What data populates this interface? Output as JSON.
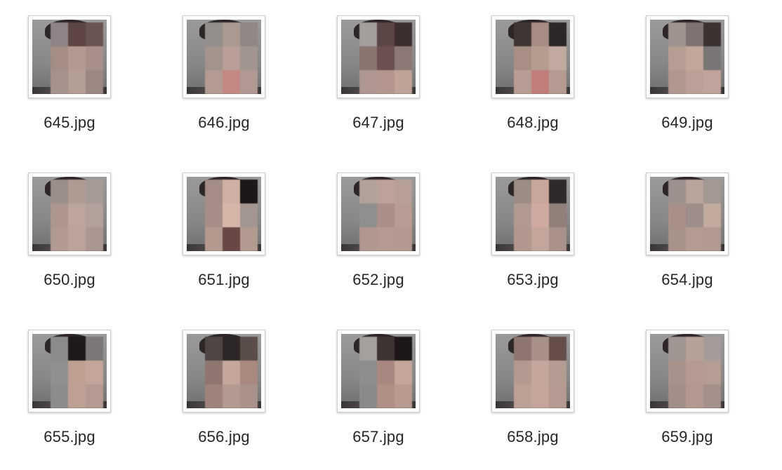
{
  "files": [
    {
      "name": "645.jpg",
      "cells": [
        "#8d8585",
        "#5c4543",
        "#6a5452",
        "#a48d85",
        "#b29a90",
        "#a8908a",
        "#a5928c",
        "#b49f96",
        "#9b8883"
      ]
    },
    {
      "name": "646.jpg",
      "cells": [
        "#938d8b",
        "#a99991",
        "#8f8886",
        "#a2938d",
        "#b89e96",
        "#a2948f",
        "#b39b93",
        "#c48883",
        "#b09993"
      ]
    },
    {
      "name": "647.jpg",
      "cells": [
        "#a39f9c",
        "#5a4644",
        "#3d2f2e",
        "#8a7470",
        "#6a5150",
        "#8c7976",
        "#ad9790",
        "#b4968f",
        "#c0a398"
      ]
    },
    {
      "name": "648.jpg",
      "cells": [
        "#3f3634",
        "#a68c82",
        "#2b2627",
        "#a88e85",
        "#b49c90",
        "#c0aaa0",
        "#b99d94",
        "#c07d7a",
        "#b59a92"
      ]
    },
    {
      "name": "649.jpg",
      "cells": [
        "#a0938f",
        "#7f7472",
        "#3b3232",
        "#b59d93",
        "#c2a79d",
        "#7a7676",
        "#b09891",
        "#bba097",
        "#c0a39a"
      ]
    },
    {
      "name": "650.jpg",
      "cells": [
        "#9c8e8a",
        "#b09b92",
        "#a69a96",
        "#ac968e",
        "#bca59c",
        "#b2a19a",
        "#b09a92",
        "#baa39a",
        "#aa9890"
      ]
    },
    {
      "name": "651.jpg",
      "cells": [
        "#a38d86",
        "#cfb0a4",
        "#1c1718",
        "#a48e87",
        "#d7b6aa",
        "#a39590",
        "#b4998f",
        "#6a4744",
        "#b39a90"
      ]
    },
    {
      "name": "652.jpg",
      "cells": [
        "#b1a19a",
        "#bca29a",
        "#b6a098",
        "#8f8f8f",
        "#a98f87",
        "#b79c93",
        "#b09890",
        "#b49a90",
        "#b39990"
      ]
    },
    {
      "name": "653.jpg",
      "cells": [
        "#9c8c86",
        "#c9a69b",
        "#2f2a2a",
        "#b09a91",
        "#d0aaa0",
        "#917f7a",
        "#b2978f",
        "#c4a59b",
        "#a99289"
      ]
    },
    {
      "name": "654.jpg",
      "cells": [
        "#9c918d",
        "#b8a49a",
        "#a39892",
        "#a89088",
        "#9e8e8a",
        "#c2aa9f",
        "#a8938b",
        "#b49c93",
        "#b09a91"
      ]
    },
    {
      "name": "655.jpg",
      "cells": [
        "#8b8b8b",
        "#1e191b",
        "#7c7878",
        "#909090",
        "#c09f93",
        "#c3a59a",
        "#8c8c8c",
        "#bd9f94",
        "#b49a91"
      ]
    },
    {
      "name": "656.jpg",
      "cells": [
        "#4e4644",
        "#2d2728",
        "#5a4d4a",
        "#8f7670",
        "#c4a69c",
        "#a8887f",
        "#9e837c",
        "#b39a90",
        "#a8928a"
      ]
    },
    {
      "name": "657.jpg",
      "cells": [
        "#a5a09e",
        "#3f3434",
        "#1d1718",
        "#8f8e8e",
        "#a88781",
        "#c5a69c",
        "#8b8989",
        "#b18e86",
        "#b89a90"
      ]
    },
    {
      "name": "658.jpg",
      "cells": [
        "#8d7670",
        "#a79087",
        "#654e4a",
        "#b39a91",
        "#c4a69c",
        "#b59c92",
        "#bca096",
        "#c5a59b",
        "#b59a91"
      ]
    },
    {
      "name": "659.jpg",
      "cells": [
        "#9f9591",
        "#b6a198",
        "#a49c9a",
        "#a8938c",
        "#b49a92",
        "#b69d94",
        "#a28f88",
        "#b39890",
        "#a39088"
      ]
    }
  ]
}
